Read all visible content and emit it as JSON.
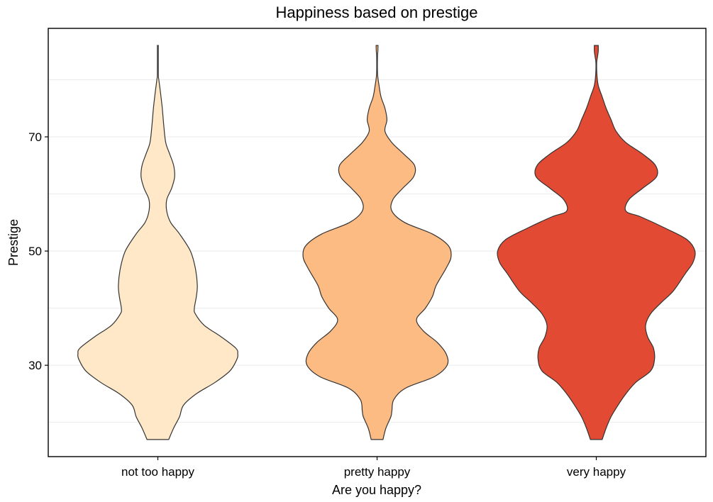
{
  "chart_data": {
    "type": "violin",
    "title": "Happiness based on prestige",
    "xlabel": "Are you happy?",
    "ylabel": "Prestige",
    "categories": [
      "not too happy",
      "pretty happy",
      "very happy"
    ],
    "colors": [
      "#fee8c8",
      "#fdbb84",
      "#e34a33"
    ],
    "ylim": [
      14,
      89
    ],
    "yticks": [
      30,
      50,
      70
    ],
    "ytick_labels": [
      "30",
      "50",
      "70"
    ],
    "y_minor_grid": [
      20,
      40,
      60,
      80
    ],
    "grid": "major and minor horizontal",
    "density_scale": "width relative to max density across groups",
    "violins": [
      {
        "name": "not too happy",
        "y_range": [
          17,
          86
        ],
        "profile": [
          [
            17,
            0.11
          ],
          [
            19,
            0.16
          ],
          [
            21,
            0.22
          ],
          [
            23,
            0.26
          ],
          [
            25,
            0.39
          ],
          [
            27,
            0.58
          ],
          [
            29,
            0.73
          ],
          [
            31,
            0.8
          ],
          [
            32,
            0.81
          ],
          [
            33,
            0.79
          ],
          [
            35,
            0.64
          ],
          [
            37,
            0.47
          ],
          [
            39,
            0.38
          ],
          [
            40,
            0.37
          ],
          [
            42,
            0.39
          ],
          [
            44,
            0.4
          ],
          [
            47,
            0.38
          ],
          [
            50,
            0.33
          ],
          [
            53,
            0.22
          ],
          [
            55,
            0.13
          ],
          [
            57,
            0.09
          ],
          [
            59,
            0.09
          ],
          [
            61,
            0.14
          ],
          [
            63,
            0.17
          ],
          [
            65,
            0.16
          ],
          [
            67,
            0.12
          ],
          [
            69,
            0.08
          ],
          [
            72,
            0.06
          ],
          [
            75,
            0.045
          ],
          [
            78,
            0.025
          ],
          [
            80,
            0.01
          ],
          [
            81,
            0.005
          ],
          [
            86,
            0.005
          ]
        ]
      },
      {
        "name": "pretty happy",
        "y_range": [
          17,
          86
        ],
        "profile": [
          [
            17,
            0.06
          ],
          [
            19,
            0.09
          ],
          [
            21,
            0.14
          ],
          [
            22,
            0.15
          ],
          [
            24,
            0.17
          ],
          [
            26,
            0.29
          ],
          [
            28,
            0.58
          ],
          [
            30,
            0.71
          ],
          [
            32,
            0.7
          ],
          [
            34,
            0.61
          ],
          [
            36,
            0.47
          ],
          [
            38,
            0.4
          ],
          [
            40,
            0.49
          ],
          [
            42,
            0.56
          ],
          [
            44,
            0.6
          ],
          [
            47,
            0.7
          ],
          [
            49,
            0.75
          ],
          [
            51,
            0.72
          ],
          [
            53,
            0.56
          ],
          [
            55,
            0.28
          ],
          [
            57,
            0.15
          ],
          [
            59,
            0.16
          ],
          [
            61,
            0.26
          ],
          [
            63,
            0.37
          ],
          [
            65,
            0.38
          ],
          [
            67,
            0.27
          ],
          [
            69,
            0.15
          ],
          [
            71,
            0.08
          ],
          [
            73,
            0.1
          ],
          [
            75,
            0.08
          ],
          [
            77,
            0.04
          ],
          [
            79,
            0.02
          ],
          [
            81,
            0.005
          ],
          [
            84,
            0.004
          ],
          [
            85,
            0.008
          ],
          [
            86,
            0.01
          ]
        ]
      },
      {
        "name": "very happy",
        "y_range": [
          17,
          86
        ],
        "profile": [
          [
            17,
            0.06
          ],
          [
            19,
            0.1
          ],
          [
            21,
            0.15
          ],
          [
            23,
            0.22
          ],
          [
            25,
            0.3
          ],
          [
            27,
            0.4
          ],
          [
            29,
            0.55
          ],
          [
            31,
            0.59
          ],
          [
            33,
            0.58
          ],
          [
            35,
            0.52
          ],
          [
            37,
            0.5
          ],
          [
            39,
            0.55
          ],
          [
            41,
            0.66
          ],
          [
            43,
            0.78
          ],
          [
            46,
            0.9
          ],
          [
            48,
            0.98
          ],
          [
            50,
            1.0
          ],
          [
            52,
            0.92
          ],
          [
            54,
            0.7
          ],
          [
            56,
            0.45
          ],
          [
            57,
            0.3
          ],
          [
            59,
            0.33
          ],
          [
            61,
            0.47
          ],
          [
            63,
            0.61
          ],
          [
            65,
            0.6
          ],
          [
            67,
            0.47
          ],
          [
            69,
            0.3
          ],
          [
            71,
            0.2
          ],
          [
            73,
            0.15
          ],
          [
            75,
            0.1
          ],
          [
            77,
            0.06
          ],
          [
            79,
            0.02
          ],
          [
            81,
            0.006
          ],
          [
            83,
            0.004
          ],
          [
            84,
            0.012
          ],
          [
            85,
            0.02
          ],
          [
            86,
            0.02
          ]
        ]
      }
    ]
  }
}
